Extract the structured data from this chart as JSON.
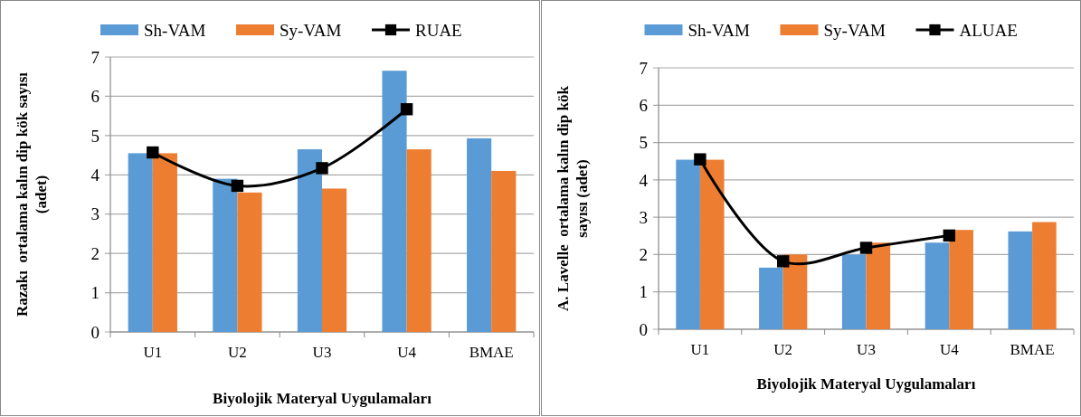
{
  "chart_data": [
    {
      "type": "bar",
      "categories": [
        "U1",
        "U2",
        "U3",
        "U4",
        "BMAE"
      ],
      "xlabel": "Biyolojik Materyal Uygulamaları",
      "ylabel": "Razakı  ortalama kalın dip kök sayısı\n(adet)",
      "ylim": [
        0,
        7
      ],
      "yticks": [
        0,
        1,
        2,
        3,
        4,
        5,
        6,
        7
      ],
      "grid": "y",
      "legend": "top",
      "series": [
        {
          "name": "Sh-VAM",
          "color": "#5b9bd5",
          "values": [
            4.55,
            3.9,
            4.65,
            6.65,
            4.93
          ]
        },
        {
          "name": "Sy-VAM",
          "color": "#ed7d31",
          "values": [
            4.55,
            3.55,
            3.65,
            4.65,
            4.1
          ]
        },
        {
          "name": "RUAE",
          "type": "line",
          "color": "#000000",
          "marker": "square",
          "values": [
            4.57,
            3.72,
            4.17,
            5.67,
            null
          ]
        }
      ]
    },
    {
      "type": "bar",
      "categories": [
        "U1",
        "U2",
        "U3",
        "U4",
        "BMAE"
      ],
      "xlabel": "Biyolojik Materyal Uygulamaları",
      "ylabel": "A. Lavelle  ortalama kalın dip kök\nsayısı (adet)",
      "ylim": [
        0,
        7
      ],
      "yticks": [
        0,
        1,
        2,
        3,
        4,
        5,
        6,
        7
      ],
      "grid": "y",
      "legend": "top",
      "series": [
        {
          "name": "Sh-VAM",
          "color": "#5b9bd5",
          "values": [
            4.54,
            1.65,
            2.0,
            2.32,
            2.62
          ]
        },
        {
          "name": "Sy-VAM",
          "color": "#ed7d31",
          "values": [
            4.54,
            2.0,
            2.32,
            2.66,
            2.87
          ]
        },
        {
          "name": "ALUAE",
          "type": "line",
          "color": "#000000",
          "marker": "square",
          "values": [
            4.55,
            1.82,
            2.18,
            2.51,
            null
          ]
        }
      ]
    }
  ]
}
